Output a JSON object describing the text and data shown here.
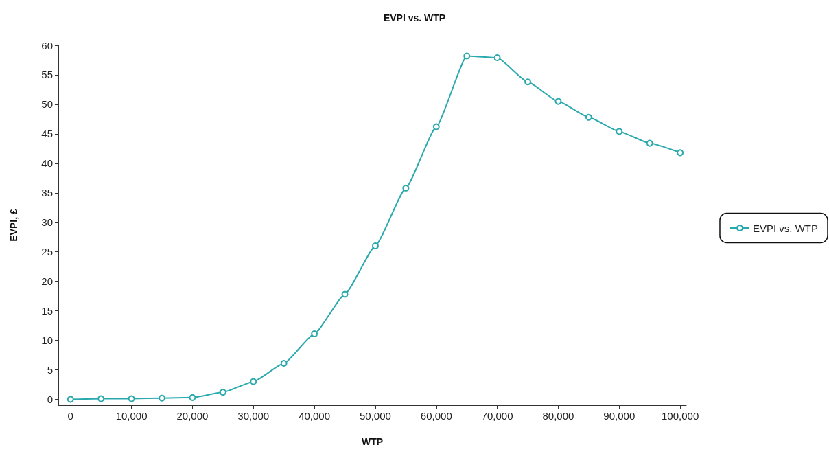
{
  "chart_data": {
    "type": "line",
    "title": "EVPI vs. WTP",
    "xlabel": "WTP",
    "ylabel": "EVPI, £",
    "x": [
      0,
      5000,
      10000,
      15000,
      20000,
      25000,
      30000,
      35000,
      40000,
      45000,
      50000,
      55000,
      60000,
      65000,
      70000,
      75000,
      80000,
      85000,
      90000,
      95000,
      100000
    ],
    "series": [
      {
        "name": "EVPI vs. WTP",
        "color": "#2aa9ad",
        "values": [
          0,
          0.1,
          0.1,
          0.2,
          0.3,
          1.2,
          3.0,
          6.1,
          11.1,
          17.8,
          26.0,
          35.8,
          46.2,
          58.2,
          57.9,
          53.8,
          50.5,
          47.8,
          45.4,
          43.4,
          41.8
        ]
      }
    ],
    "xlim": [
      -2000,
      101000
    ],
    "xticks": [
      0,
      {
        "value": 10000,
        "label": "10,000"
      },
      {
        "value": 20000,
        "label": "20,000"
      },
      {
        "value": 30000,
        "label": "30,000"
      },
      {
        "value": 40000,
        "label": "40,000"
      },
      {
        "value": 50000,
        "label": "50,000"
      },
      {
        "value": 60000,
        "label": "60,000"
      },
      {
        "value": 70000,
        "label": "70,000"
      },
      {
        "value": 80000,
        "label": "80,000"
      },
      {
        "value": 90000,
        "label": "90,000"
      },
      {
        "value": 100000,
        "label": "100,000"
      }
    ],
    "ylim": [
      -1,
      60
    ],
    "yticks": [
      0,
      5,
      10,
      15,
      20,
      25,
      30,
      35,
      40,
      45,
      50,
      55,
      60
    ],
    "grid": false,
    "legend": "right",
    "marker": "circle",
    "line_style": "solid"
  }
}
